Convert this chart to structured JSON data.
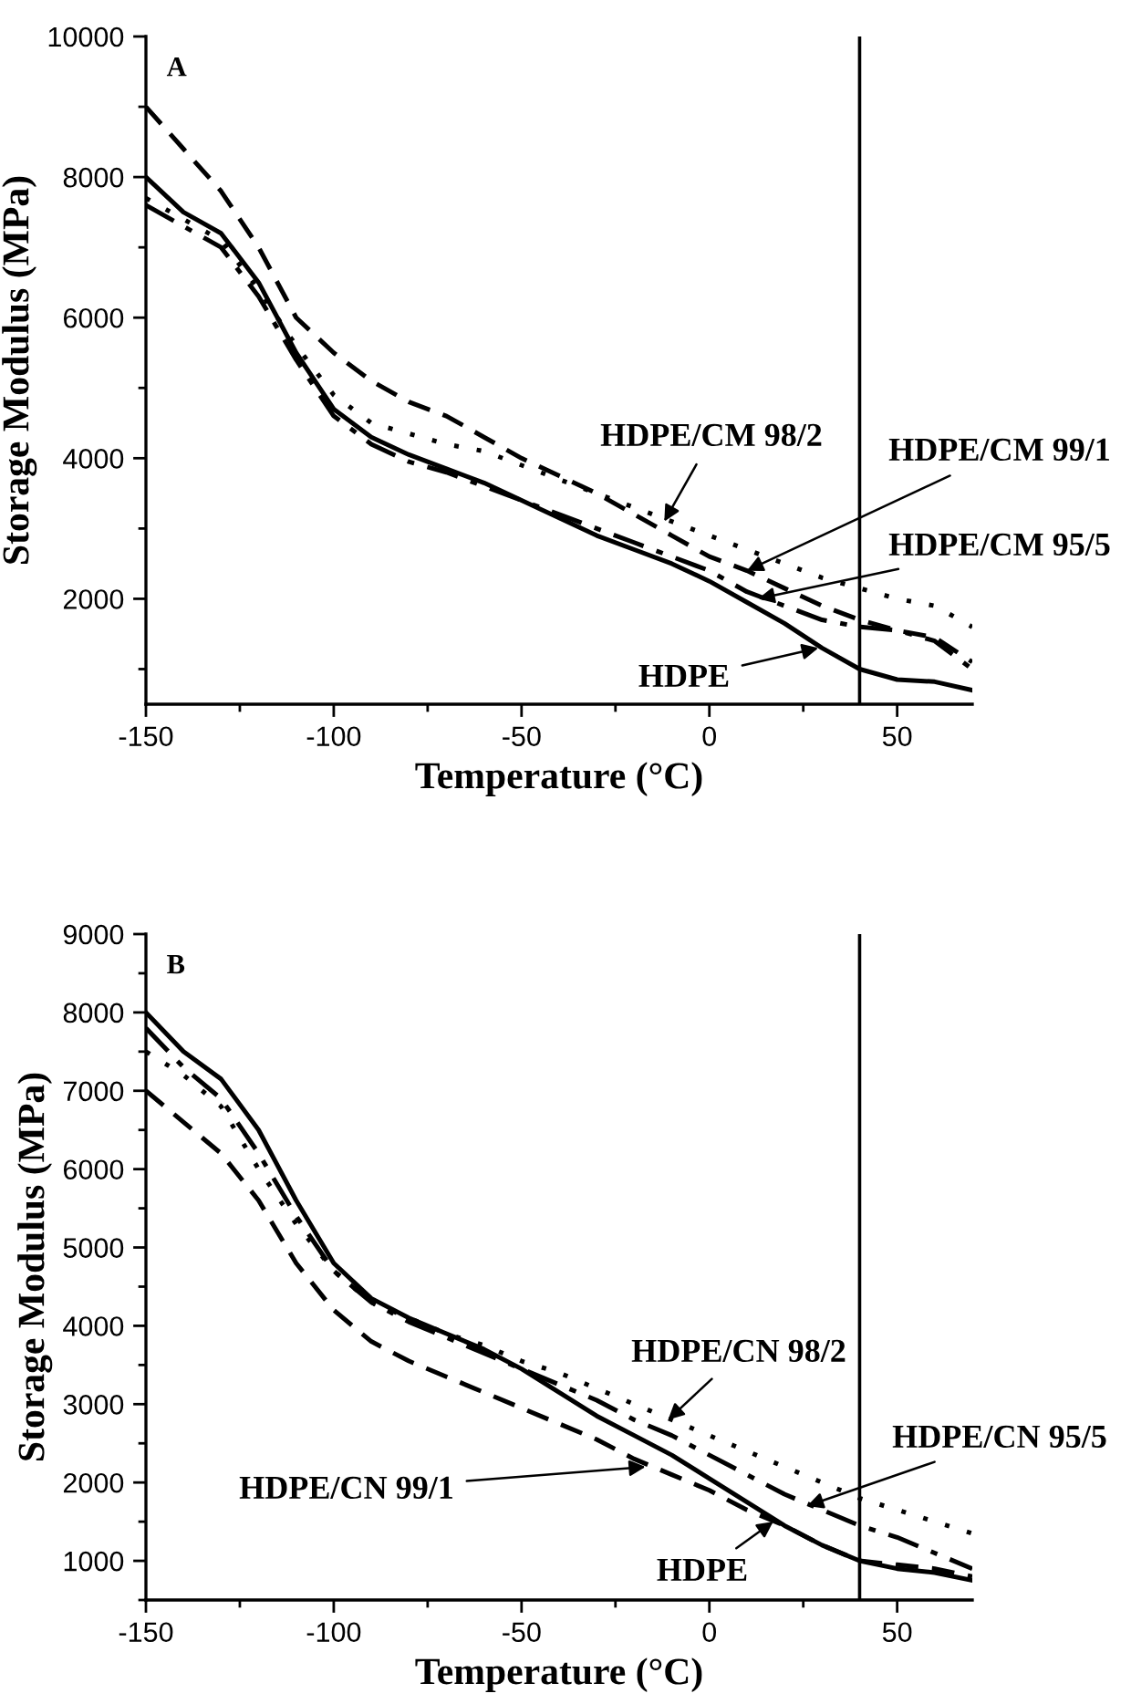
{
  "chart_data": [
    {
      "type": "line",
      "title": "A",
      "xlabel": "Temperature (°C)",
      "ylabel": "Storage Modulus (MPa)",
      "x": [
        -150,
        -140,
        -130,
        -120,
        -110,
        -100,
        -90,
        -80,
        -70,
        -60,
        -50,
        -40,
        -30,
        -20,
        -10,
        0,
        10,
        20,
        30,
        40,
        50,
        60,
        70
      ],
      "xlim": [
        -150,
        70
      ],
      "xticks": [
        -150,
        -100,
        -50,
        0,
        50
      ],
      "ylim": [
        500,
        10000
      ],
      "yticks": [
        2000,
        4000,
        6000,
        8000,
        10000
      ],
      "grid": false,
      "ref_lines": [
        {
          "axis": "x",
          "value": 40,
          "color": "#000000"
        }
      ],
      "annotations": [
        {
          "text": "HDPE",
          "x": 29,
          "y": 1300
        },
        {
          "text": "HDPE/CM 99/1",
          "x": 10,
          "y": 2400
        },
        {
          "text": "HDPE/CM 98/2",
          "x": -12,
          "y": 3100
        },
        {
          "text": "HDPE/CM 95/5",
          "x": 13,
          "y": 2000
        }
      ],
      "series": [
        {
          "color": "#000000",
          "line_style": "solid",
          "values": [
            8000,
            7500,
            7200,
            6500,
            5500,
            4700,
            4300,
            4050,
            3850,
            3650,
            3400,
            3150,
            2900,
            2700,
            2500,
            2250,
            1950,
            1650,
            1300,
            1000,
            850,
            820,
            700
          ]
        },
        {
          "color": "#000000",
          "line_style": "dashed",
          "values": [
            9000,
            8400,
            7800,
            7000,
            6000,
            5500,
            5100,
            4800,
            4600,
            4300,
            4000,
            3750,
            3500,
            3200,
            2900,
            2600,
            2400,
            2150,
            1900,
            1700,
            1550,
            1450,
            1100
          ]
        },
        {
          "color": "#000000",
          "line_style": "dotted",
          "values": [
            7700,
            7400,
            7100,
            6400,
            5600,
            4900,
            4500,
            4350,
            4200,
            4100,
            3900,
            3700,
            3500,
            3300,
            3100,
            2900,
            2700,
            2500,
            2300,
            2150,
            2000,
            1900,
            1600
          ]
        },
        {
          "color": "#000000",
          "line_style": "dashdot",
          "values": [
            7600,
            7300,
            7000,
            6300,
            5400,
            4600,
            4200,
            3950,
            3800,
            3600,
            3400,
            3200,
            3000,
            2800,
            2600,
            2400,
            2100,
            1900,
            1700,
            1600,
            1550,
            1400,
            1000
          ]
        }
      ]
    },
    {
      "type": "line",
      "title": "B",
      "xlabel": "Temperature (°C)",
      "ylabel": "Storage Modulus (MPa)",
      "x": [
        -150,
        -140,
        -130,
        -120,
        -110,
        -100,
        -90,
        -80,
        -70,
        -60,
        -50,
        -40,
        -30,
        -20,
        -10,
        0,
        10,
        20,
        30,
        40,
        50,
        60,
        70
      ],
      "xlim": [
        -150,
        70
      ],
      "xticks": [
        -150,
        -100,
        -50,
        0,
        50
      ],
      "ylim": [
        500,
        9000
      ],
      "yticks": [
        1000,
        2000,
        3000,
        4000,
        5000,
        6000,
        7000,
        8000,
        9000
      ],
      "grid": false,
      "ref_lines": [
        {
          "axis": "x",
          "value": 40,
          "color": "#000000"
        }
      ],
      "annotations": [
        {
          "text": "HDPE",
          "x": 17,
          "y": 1500
        },
        {
          "text": "HDPE/CN 99/1",
          "x": -17,
          "y": 2200
        },
        {
          "text": "HDPE/CN 98/2",
          "x": -11,
          "y": 2800
        },
        {
          "text": "HDPE/CN 95/5",
          "x": 26,
          "y": 1700
        }
      ],
      "series": [
        {
          "color": "#000000",
          "line_style": "solid",
          "values": [
            8000,
            7500,
            7150,
            6500,
            5600,
            4800,
            4350,
            4100,
            3900,
            3700,
            3450,
            3150,
            2850,
            2600,
            2350,
            2050,
            1750,
            1450,
            1200,
            1000,
            900,
            850,
            750
          ]
        },
        {
          "color": "#000000",
          "line_style": "dashed",
          "values": [
            7000,
            6600,
            6200,
            5600,
            4800,
            4200,
            3800,
            3550,
            3350,
            3150,
            2950,
            2750,
            2550,
            2300,
            2100,
            1900,
            1650,
            1450,
            1200,
            1000,
            950,
            900,
            800
          ]
        },
        {
          "color": "#000000",
          "line_style": "dotted",
          "values": [
            7500,
            7200,
            6800,
            6000,
            5300,
            4700,
            4300,
            4100,
            3900,
            3750,
            3550,
            3400,
            3200,
            3000,
            2800,
            2600,
            2400,
            2200,
            2000,
            1800,
            1650,
            1500,
            1350
          ]
        },
        {
          "color": "#000000",
          "line_style": "dashdot",
          "values": [
            7800,
            7300,
            6900,
            6200,
            5400,
            4700,
            4300,
            4050,
            3850,
            3650,
            3450,
            3250,
            3050,
            2800,
            2600,
            2350,
            2100,
            1850,
            1650,
            1450,
            1300,
            1100,
            900
          ]
        }
      ]
    }
  ]
}
